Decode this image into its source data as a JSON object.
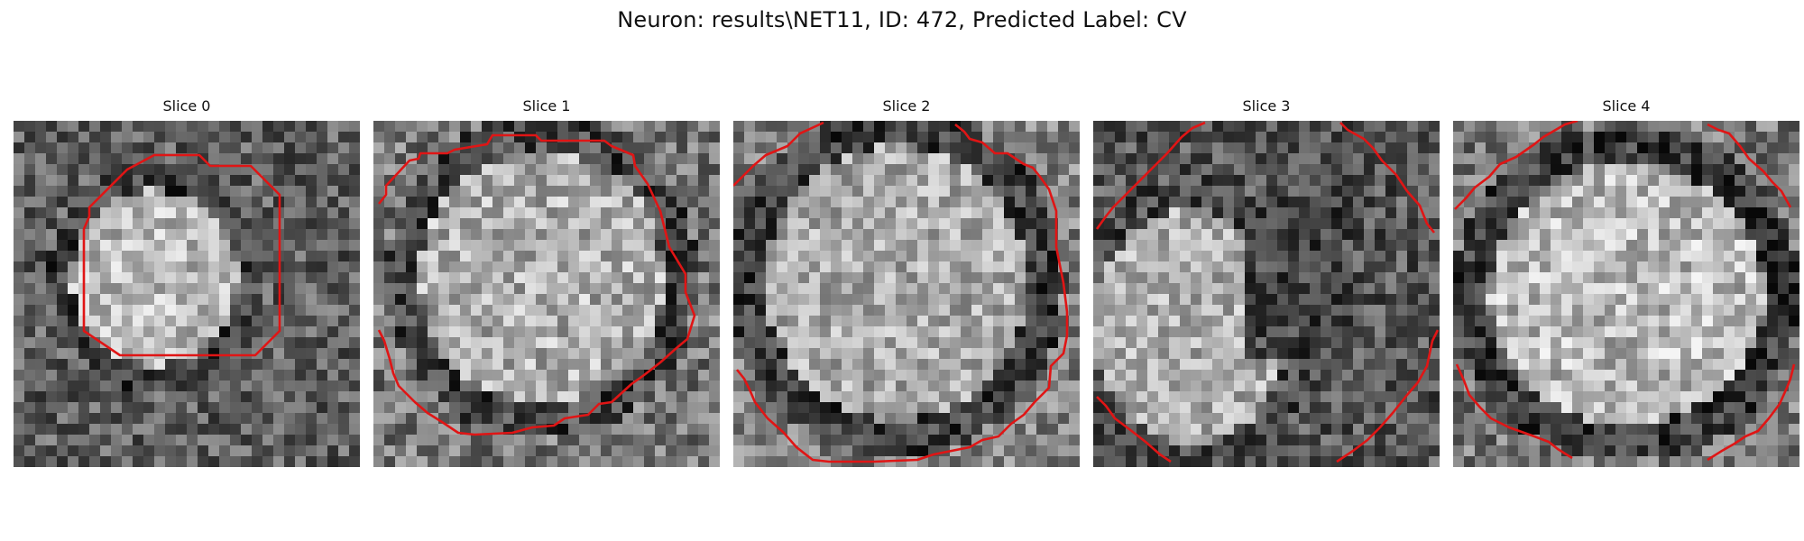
{
  "figure": {
    "title": "Neuron: results\\NET11, ID: 472, Predicted Label: CV",
    "contour_color": "#e01515",
    "colormap": "grayscale",
    "slices": [
      {
        "label": "Slice 0"
      },
      {
        "label": "Slice 1"
      },
      {
        "label": "Slice 2"
      },
      {
        "label": "Slice 3"
      },
      {
        "label": "Slice 4"
      }
    ]
  }
}
